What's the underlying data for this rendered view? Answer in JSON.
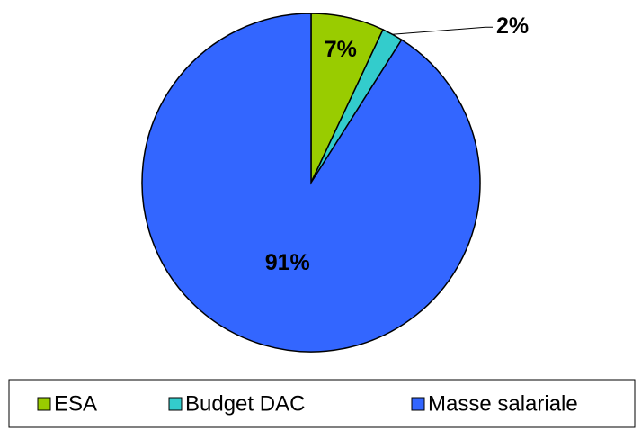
{
  "chart_data": {
    "type": "pie",
    "categories": [
      "ESA",
      "Budget DAC",
      "Masse salariale"
    ],
    "values": [
      7,
      2,
      91
    ],
    "value_labels": [
      "7%",
      "2%",
      "91%"
    ],
    "colors": [
      "#99cc00",
      "#33cccc",
      "#3366ff"
    ],
    "legend": "bottom"
  }
}
